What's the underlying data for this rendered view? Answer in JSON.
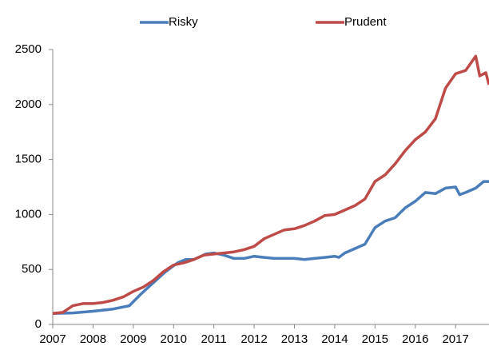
{
  "chart_data": {
    "type": "line",
    "xlim": [
      2007,
      2017.83
    ],
    "xticks": [
      2007,
      2008,
      2009,
      2010,
      2011,
      2012,
      2013,
      2014,
      2015,
      2016,
      2017
    ],
    "ylim": [
      0,
      2500
    ],
    "yticks": [
      0,
      500,
      1000,
      1500,
      2000,
      2500
    ],
    "legend": "top",
    "series": [
      {
        "name": "Risky",
        "color": "#4a7ebb",
        "x": [
          2007,
          2007.5,
          2008,
          2008.5,
          2008.9,
          2009.2,
          2009.5,
          2009.8,
          2010.1,
          2010.3,
          2010.5,
          2010.8,
          2011,
          2011.25,
          2011.5,
          2011.75,
          2012,
          2012.25,
          2012.5,
          2012.75,
          2013,
          2013.25,
          2013.5,
          2013.75,
          2014,
          2014.1,
          2014.25,
          2014.5,
          2014.75,
          2015,
          2015.25,
          2015.5,
          2015.75,
          2016,
          2016.25,
          2016.5,
          2016.75,
          2017,
          2017.1,
          2017.25,
          2017.5,
          2017.7,
          2017.83
        ],
        "values": [
          100,
          105,
          120,
          140,
          170,
          280,
          380,
          480,
          560,
          590,
          590,
          640,
          650,
          630,
          600,
          600,
          620,
          610,
          600,
          600,
          600,
          590,
          600,
          610,
          620,
          610,
          650,
          690,
          730,
          880,
          940,
          970,
          1060,
          1120,
          1200,
          1190,
          1240,
          1250,
          1180,
          1200,
          1240,
          1300,
          1300
        ]
      },
      {
        "name": "Prudent",
        "color": "#be4b48",
        "x": [
          2007,
          2007.25,
          2007.5,
          2007.75,
          2008,
          2008.25,
          2008.5,
          2008.75,
          2009,
          2009.25,
          2009.5,
          2009.75,
          2010,
          2010.25,
          2010.5,
          2010.75,
          2011,
          2011.25,
          2011.5,
          2011.75,
          2012,
          2012.25,
          2012.5,
          2012.75,
          2013,
          2013.25,
          2013.5,
          2013.75,
          2014,
          2014.25,
          2014.5,
          2014.75,
          2015,
          2015.25,
          2015.5,
          2015.75,
          2016,
          2016.25,
          2016.5,
          2016.75,
          2017,
          2017.25,
          2017.5,
          2017.6,
          2017.75,
          2017.83
        ],
        "values": [
          100,
          110,
          170,
          190,
          190,
          200,
          220,
          250,
          300,
          340,
          400,
          480,
          540,
          560,
          590,
          630,
          640,
          650,
          660,
          680,
          710,
          780,
          820,
          860,
          870,
          900,
          940,
          990,
          1000,
          1040,
          1080,
          1140,
          1300,
          1360,
          1460,
          1580,
          1680,
          1750,
          1870,
          2150,
          2280,
          2310,
          2440,
          2260,
          2290,
          2180
        ]
      }
    ]
  }
}
